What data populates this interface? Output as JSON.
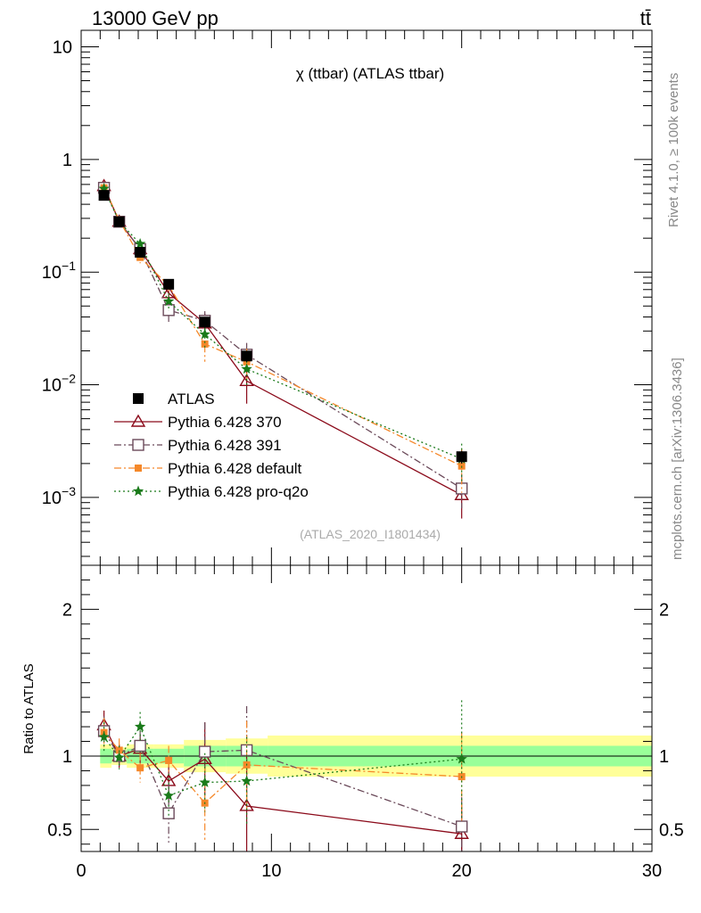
{
  "header": {
    "left": "13000 GeV pp",
    "right": "tt̄"
  },
  "side_labels": {
    "rivet": "Rivet 4.1.0, ≥ 100k events",
    "mcplots": "mcplots.cern.ch [arXiv:1306.3436]"
  },
  "colors": {
    "atlas": "#000000",
    "p370": "#8b0a1a",
    "p391": "#6b4a5a",
    "pdefault": "#f5882a",
    "pq2o": "#1a7a1a",
    "band_inner": "#99ff99",
    "band_outer": "#ffff99"
  },
  "chart_data": [
    {
      "type": "scatter",
      "panel": "main",
      "title": "χ (ttbar) (ATLAS ttbar)",
      "watermark": "(ATLAS_2020_I1801434)",
      "xlabel": "",
      "ylabel": "",
      "yscale": "log",
      "xlim": [
        0,
        30
      ],
      "ylim": [
        0.00025,
        14
      ],
      "yticks": [
        {
          "v": 0.001,
          "base": "10",
          "exp": "−3"
        },
        {
          "v": 0.01,
          "base": "10",
          "exp": "−2"
        },
        {
          "v": 0.1,
          "base": "10",
          "exp": "−1"
        },
        {
          "v": 1,
          "base": "1",
          "exp": ""
        },
        {
          "v": 10,
          "base": "10",
          "exp": ""
        }
      ],
      "x": [
        1.2,
        2.0,
        3.1,
        4.6,
        6.5,
        8.7,
        20.0
      ],
      "series": [
        {
          "name": "ATLAS",
          "marker": "square-filled",
          "line": "none",
          "color_key": "atlas",
          "values": [
            0.48,
            0.28,
            0.15,
            0.078,
            0.036,
            0.018,
            0.0023
          ],
          "err": [
            0.03,
            0.02,
            0.012,
            0.006,
            0.004,
            0.002,
            0.0003
          ]
        },
        {
          "name": "Pythia 6.428 370",
          "marker": "triangle-open",
          "line": "solid",
          "color_key": "p370",
          "values": [
            0.58,
            0.28,
            0.16,
            0.065,
            0.035,
            0.0108,
            0.00105
          ],
          "err": [
            0.05,
            0.02,
            0.015,
            0.01,
            0.008,
            0.004,
            0.0004
          ]
        },
        {
          "name": "Pythia 6.428 391",
          "marker": "square-open",
          "line": "dashdot",
          "color_key": "p391",
          "values": [
            0.56,
            0.28,
            0.16,
            0.046,
            0.037,
            0.0185,
            0.0012
          ],
          "err": [
            0.05,
            0.02,
            0.015,
            0.01,
            0.008,
            0.005,
            0.0004
          ]
        },
        {
          "name": "Pythia 6.428 default",
          "marker": "square-small",
          "line": "dashdot",
          "color_key": "pdefault",
          "values": [
            0.56,
            0.29,
            0.135,
            0.076,
            0.023,
            0.016,
            0.0019
          ],
          "err": [
            0.05,
            0.02,
            0.015,
            0.01,
            0.007,
            0.005,
            0.0008
          ]
        },
        {
          "name": "Pythia 6.428 pro-q2o",
          "marker": "star",
          "line": "dotted",
          "color_key": "pq2o",
          "values": [
            0.55,
            0.28,
            0.178,
            0.055,
            0.028,
            0.0138,
            0.0022
          ],
          "err": [
            0.05,
            0.02,
            0.015,
            0.01,
            0.007,
            0.004,
            0.0008
          ]
        }
      ]
    },
    {
      "type": "scatter",
      "panel": "ratio",
      "ylabel": "Ratio to ATLAS",
      "xlabel": "",
      "xlim": [
        0,
        30
      ],
      "ylim": [
        0.35,
        2.3
      ],
      "yticks": [
        0.5,
        1,
        2
      ],
      "xticks": [
        0,
        10,
        20,
        30
      ],
      "band_edges": [
        1.0,
        1.6,
        2.4,
        3.8,
        5.4,
        7.6,
        9.8,
        30.0
      ],
      "band_inner": [
        0.05,
        0.04,
        0.05,
        0.05,
        0.07,
        0.07,
        0.07,
        0.07
      ],
      "band_outer": [
        0.08,
        0.06,
        0.08,
        0.08,
        0.11,
        0.12,
        0.14,
        0.14
      ],
      "x": [
        1.2,
        2.0,
        3.1,
        4.6,
        6.5,
        8.7,
        20.0
      ],
      "series": [
        {
          "name": "Pythia 6.428 370",
          "color_key": "p370",
          "marker": "triangle-open",
          "line": "solid",
          "values": [
            1.21,
            1.0,
            1.05,
            0.83,
            0.98,
            0.66,
            0.47
          ],
          "err": [
            0.1,
            0.08,
            0.1,
            0.15,
            0.25,
            0.4,
            0.2
          ]
        },
        {
          "name": "Pythia 6.428 391",
          "color_key": "p391",
          "marker": "square-open",
          "line": "dashdot",
          "values": [
            1.17,
            1.0,
            1.07,
            0.61,
            1.03,
            1.04,
            0.52
          ],
          "err": [
            0.1,
            0.08,
            0.1,
            0.2,
            0.2,
            0.3,
            0.2
          ]
        },
        {
          "name": "Pythia 6.428 default",
          "color_key": "pdefault",
          "marker": "square-small",
          "line": "dashdot",
          "values": [
            1.16,
            1.04,
            0.92,
            0.97,
            0.68,
            0.94,
            0.86
          ],
          "err": [
            0.1,
            0.08,
            0.1,
            0.1,
            0.25,
            0.3,
            0.3
          ]
        },
        {
          "name": "Pythia 6.428 pro-q2o",
          "color_key": "pq2o",
          "marker": "star",
          "line": "dotted",
          "values": [
            1.13,
            0.99,
            1.2,
            0.73,
            0.82,
            0.83,
            0.98
          ],
          "err": [
            0.1,
            0.08,
            0.1,
            0.15,
            0.2,
            0.3,
            0.4
          ]
        }
      ]
    }
  ]
}
